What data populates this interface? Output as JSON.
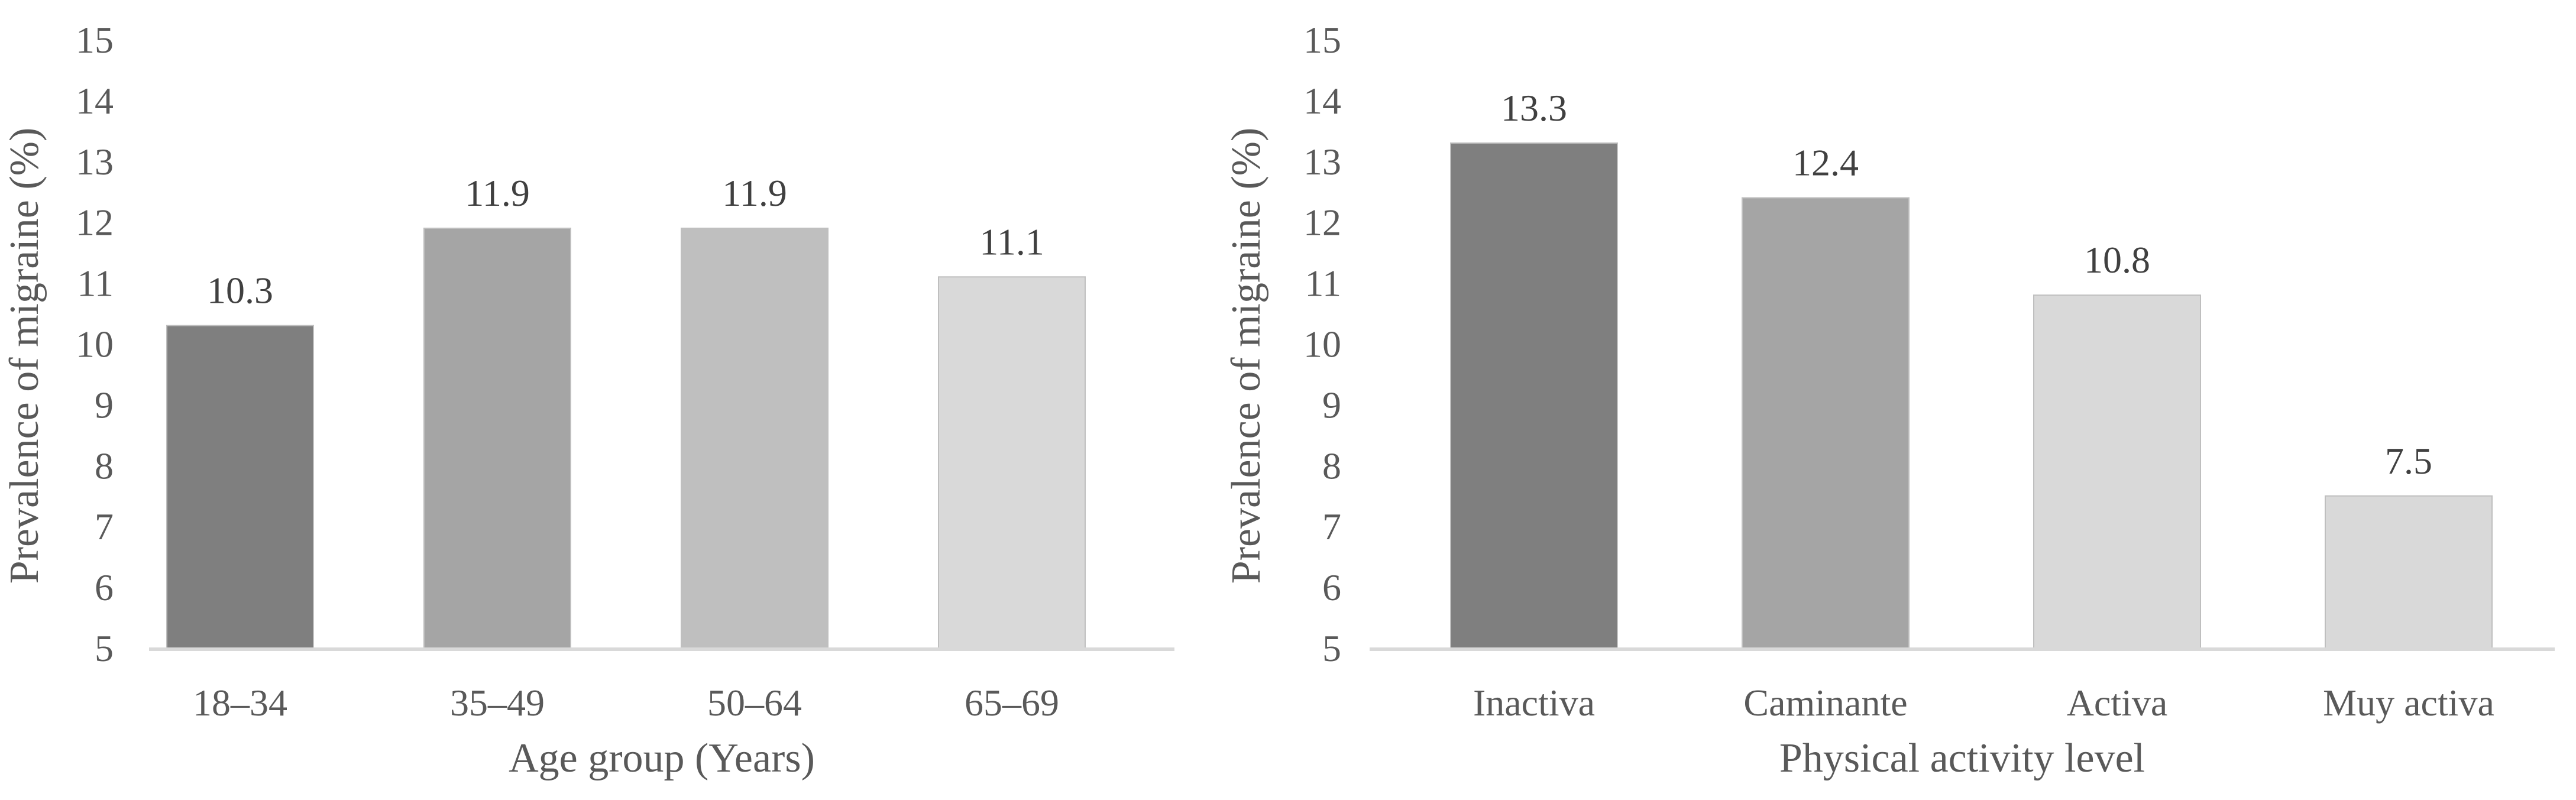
{
  "chart_data": [
    {
      "type": "bar",
      "categories": [
        "18–34",
        "35–49",
        "50–64",
        "65–69"
      ],
      "values": [
        10.3,
        11.9,
        11.9,
        11.1
      ],
      "data_labels": [
        "10.3",
        "11.9",
        "11.9",
        "11.1"
      ],
      "colors": [
        "#7f7f7f",
        "#a5a5a5",
        "#bfbfbf",
        "#d9d9d9"
      ],
      "xlabel": "Age group (Years)",
      "ylabel": "Prevalence of migraine (%)",
      "ylim": [
        5,
        15
      ],
      "yticks": [
        "5",
        "6",
        "7",
        "8",
        "9",
        "10",
        "11",
        "12",
        "13",
        "14",
        "15"
      ],
      "grid": false,
      "legend": "none"
    },
    {
      "type": "bar",
      "categories": [
        "Inactiva",
        "Caminante",
        "Activa",
        "Muy activa"
      ],
      "values": [
        13.3,
        12.4,
        10.8,
        7.5
      ],
      "data_labels": [
        "13.3",
        "12.4",
        "10.8",
        "7.5"
      ],
      "colors": [
        "#7f7f7f",
        "#a5a5a5",
        "#d9d9d9",
        "#d9d9d9"
      ],
      "xlabel": "Physical activity level",
      "ylabel": "Prevalence of migraine (%)",
      "ylim": [
        5,
        15
      ],
      "yticks": [
        "5",
        "6",
        "7",
        "8",
        "9",
        "10",
        "11",
        "12",
        "13",
        "14",
        "15"
      ],
      "grid": false,
      "legend": "none"
    }
  ]
}
